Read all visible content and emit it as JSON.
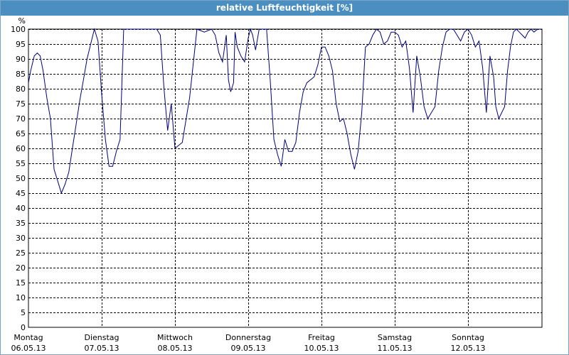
{
  "window": {
    "title": "relative Luftfeuchtigkeit [%]"
  },
  "colors": {
    "titlebar": "#4a8fc0",
    "line": "#000080",
    "grid": "#000000"
  },
  "chart_data": {
    "type": "line",
    "title": "relative Luftfeuchtigkeit [%]",
    "y_unit_label": "%",
    "ylim": [
      0,
      100
    ],
    "y_ticks": [
      0,
      5,
      10,
      15,
      20,
      25,
      30,
      35,
      40,
      45,
      50,
      55,
      60,
      65,
      70,
      75,
      80,
      85,
      90,
      95,
      100
    ],
    "x_tick_labels": [
      {
        "day": "Montag",
        "date": "06.05.13"
      },
      {
        "day": "Dienstag",
        "date": "07.05.13"
      },
      {
        "day": "Mittwoch",
        "date": "08.05.13"
      },
      {
        "day": "Donnerstag",
        "date": "09.05.13"
      },
      {
        "day": "Freitag",
        "date": "10.05.13"
      },
      {
        "day": "Samstag",
        "date": "11.05.13"
      },
      {
        "day": "Sonntag",
        "date": "12.05.13"
      }
    ],
    "xlim_days": [
      0,
      7.0
    ],
    "grid": true,
    "series": [
      {
        "x_days": [
          0.0,
          0.03,
          0.08,
          0.12,
          0.16,
          0.2,
          0.25,
          0.3,
          0.35,
          0.4,
          0.45,
          0.5,
          0.55,
          0.6,
          0.65,
          0.7,
          0.75,
          0.8,
          0.85,
          0.9,
          0.95,
          1.0,
          1.05,
          1.1,
          1.15,
          1.2,
          1.25,
          1.3,
          1.35,
          1.4,
          1.45,
          1.5,
          1.55,
          1.6,
          1.65,
          1.7,
          1.75,
          1.8,
          1.85,
          1.9,
          1.95,
          2.0,
          2.1,
          2.2,
          2.3,
          2.4,
          2.5,
          2.55,
          2.6,
          2.65,
          2.7,
          2.73,
          2.76,
          2.8,
          2.82,
          2.85,
          2.9,
          2.95,
          3.0,
          3.03,
          3.06,
          3.1,
          3.15,
          3.2,
          3.25,
          3.3,
          3.35,
          3.4,
          3.45,
          3.5,
          3.55,
          3.6,
          3.65,
          3.7,
          3.75,
          3.8,
          3.85,
          3.9,
          3.95,
          4.0,
          4.05,
          4.1,
          4.15,
          4.2,
          4.25,
          4.3,
          4.35,
          4.4,
          4.45,
          4.5,
          4.55,
          4.6,
          4.65,
          4.7,
          4.75,
          4.8,
          4.85,
          4.9,
          4.95,
          5.0,
          5.05,
          5.1,
          5.15,
          5.2,
          5.25,
          5.3,
          5.35,
          5.4,
          5.45,
          5.5,
          5.55,
          5.6,
          5.65,
          5.7,
          5.75,
          5.8,
          5.85,
          5.9,
          5.95,
          6.0,
          6.05,
          6.1,
          6.15,
          6.2,
          6.25,
          6.3,
          6.35,
          6.38,
          6.42,
          6.46,
          6.5,
          6.54,
          6.58,
          6.62,
          6.66,
          6.7,
          6.74,
          6.78,
          6.82,
          6.86,
          6.9,
          6.95,
          7.0
        ],
        "values": [
          82,
          86,
          91,
          92,
          91,
          86,
          77,
          70,
          53,
          49,
          45,
          48,
          52,
          60,
          68,
          76,
          83,
          90,
          95,
          100,
          96,
          78,
          63,
          54,
          54,
          59,
          63,
          100,
          100,
          100,
          100,
          100,
          100,
          100,
          100,
          100,
          100,
          98,
          80,
          66,
          75,
          60,
          62,
          77,
          100,
          99,
          100,
          98,
          92,
          89,
          98,
          83,
          79,
          82,
          99,
          94,
          91,
          89,
          97,
          100,
          98,
          93,
          100,
          100,
          100,
          83,
          63,
          58,
          54,
          63,
          59,
          59,
          62,
          72,
          79,
          82,
          83,
          84,
          88,
          94,
          94,
          91,
          86,
          75,
          69,
          70,
          65,
          58,
          53,
          59,
          72,
          94,
          95,
          98,
          100,
          99,
          95,
          96,
          99,
          99,
          98,
          94,
          96,
          87,
          72,
          91,
          84,
          74,
          70,
          72,
          74,
          86,
          94,
          99,
          100,
          100,
          98,
          96,
          99,
          100,
          98,
          94,
          96,
          87,
          72,
          91,
          84,
          74,
          70,
          72,
          74,
          86,
          94,
          99,
          100,
          99,
          98,
          97,
          99,
          100,
          99,
          100,
          100
        ]
      }
    ]
  }
}
